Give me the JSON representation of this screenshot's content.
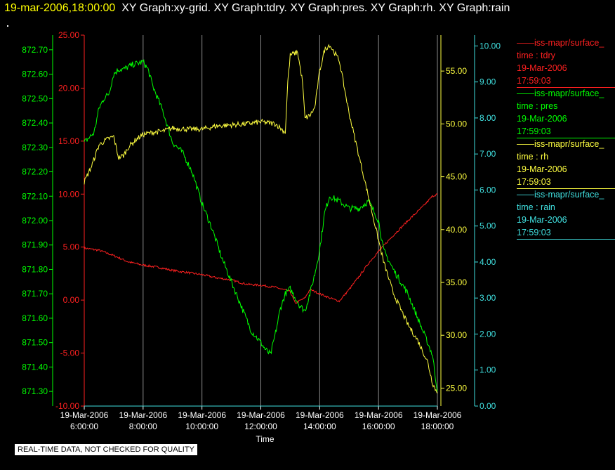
{
  "title": {
    "datetime": "19-mar-2006,18:00:00",
    "graphs": "XY Graph:xy-grid.  XY Graph:tdry.  XY Graph:pres.  XY Graph:rh.  XY Graph:rain"
  },
  "legend": [
    {
      "line": "——iss-mapr/surface_",
      "var": "time : tdry",
      "date": "19-Mar-2006",
      "time": "17:59:03",
      "color": "#ff2020"
    },
    {
      "line": "——iss-mapr/surface_",
      "var": "time : pres",
      "date": "19-Mar-2006",
      "time": "17:59:03",
      "color": "#00ff00"
    },
    {
      "line": "——iss-mapr/surface_",
      "var": "time : rh",
      "date": "19-Mar-2006",
      "time": "17:59:03",
      "color": "#ffff40"
    },
    {
      "line": "——iss-mapr/surface_",
      "var": "time : rain",
      "date": "19-Mar-2006",
      "time": "17:59:03",
      "color": "#40e0e0"
    }
  ],
  "note": "REAL-TIME DATA, NOT CHECKED FOR QUALITY",
  "chart_data": {
    "type": "line",
    "xlabel": "Time",
    "x_ticks": [
      [
        "19-Mar-2006",
        "6:00:00"
      ],
      [
        "19-Mar-2006",
        "8:00:00"
      ],
      [
        "19-Mar-2006",
        "10:00:00"
      ],
      [
        "19-Mar-2006",
        "12:00:00"
      ],
      [
        "19-Mar-2006",
        "14:00:00"
      ],
      [
        "19-Mar-2006",
        "16:00:00"
      ],
      [
        "19-Mar-2006",
        "18:00:00"
      ]
    ],
    "x_range": [
      "19-Mar-2006 6:00:00",
      "19-Mar-2006 18:00:00"
    ],
    "grid": "vertical lines at x ticks",
    "axes": [
      {
        "id": "pres",
        "side": "left-outer",
        "color": "#00ff00",
        "range": [
          871.24,
          872.76
        ],
        "ticks": [
          "871.30",
          "871.40",
          "871.50",
          "871.60",
          "871.70",
          "871.80",
          "871.90",
          "872.00",
          "872.10",
          "872.20",
          "872.30",
          "872.40",
          "872.50",
          "872.60",
          "872.70"
        ]
      },
      {
        "id": "tdry",
        "side": "left-inner",
        "color": "#ff2020",
        "range": [
          -10,
          25
        ],
        "ticks": [
          "-10.00",
          "-5.00",
          "0.00",
          "5.00",
          "10.00",
          "15.00",
          "20.00",
          "25.00"
        ]
      },
      {
        "id": "rh",
        "side": "right-inner",
        "color": "#ffff40",
        "range": [
          23.3,
          58.4
        ],
        "ticks": [
          "25.00",
          "30.00",
          "35.00",
          "40.00",
          "45.00",
          "50.00",
          "55.00"
        ]
      },
      {
        "id": "rain",
        "side": "right-outer",
        "color": "#40e0e0",
        "range": [
          0,
          10.3
        ],
        "ticks": [
          "0.00",
          "1.00",
          "2.00",
          "3.00",
          "4.00",
          "5.00",
          "6.00",
          "7.00",
          "8.00",
          "9.00",
          "10.00"
        ]
      }
    ],
    "series": [
      {
        "name": "time : tdry",
        "axis": "tdry",
        "color": "#ff2020",
        "points": [
          [
            "06:00",
            4.9
          ],
          [
            "06:30",
            4.7
          ],
          [
            "07:00",
            4.2
          ],
          [
            "07:30",
            3.6
          ],
          [
            "08:00",
            3.3
          ],
          [
            "08:30",
            3.1
          ],
          [
            "09:00",
            2.8
          ],
          [
            "09:30",
            2.6
          ],
          [
            "10:00",
            2.4
          ],
          [
            "10:30",
            2.1
          ],
          [
            "11:00",
            1.9
          ],
          [
            "11:30",
            1.5
          ],
          [
            "12:00",
            1.4
          ],
          [
            "12:30",
            1.2
          ],
          [
            "13:00",
            0.8
          ],
          [
            "13:10",
            -0.3
          ],
          [
            "13:30",
            0.2
          ],
          [
            "13:40",
            1.0
          ],
          [
            "14:00",
            0.6
          ],
          [
            "14:20",
            0.2
          ],
          [
            "14:40",
            -0.1
          ],
          [
            "15:00",
            1.0
          ],
          [
            "15:20",
            2.2
          ],
          [
            "15:40",
            3.5
          ],
          [
            "16:00",
            4.6
          ],
          [
            "16:30",
            6.1
          ],
          [
            "17:00",
            7.5
          ],
          [
            "17:30",
            8.8
          ],
          [
            "17:50",
            9.8
          ],
          [
            "18:00",
            10.0
          ]
        ],
        "noise": 0.1
      },
      {
        "name": "time : pres",
        "axis": "pres",
        "color": "#00ff00",
        "points": [
          [
            "06:00",
            872.32
          ],
          [
            "06:10",
            872.34
          ],
          [
            "06:20",
            872.36
          ],
          [
            "06:30",
            872.46
          ],
          [
            "06:40",
            872.5
          ],
          [
            "06:50",
            872.52
          ],
          [
            "07:00",
            872.6
          ],
          [
            "07:10",
            872.62
          ],
          [
            "07:20",
            872.62
          ],
          [
            "07:40",
            872.64
          ],
          [
            "08:00",
            872.65
          ],
          [
            "08:10",
            872.62
          ],
          [
            "08:20",
            872.55
          ],
          [
            "08:40",
            872.45
          ],
          [
            "09:00",
            872.32
          ],
          [
            "09:20",
            872.28
          ],
          [
            "09:40",
            872.2
          ],
          [
            "10:00",
            872.07
          ],
          [
            "10:20",
            871.97
          ],
          [
            "10:40",
            871.85
          ],
          [
            "11:00",
            871.75
          ],
          [
            "11:20",
            871.65
          ],
          [
            "11:40",
            871.55
          ],
          [
            "12:00",
            871.5
          ],
          [
            "12:10",
            871.47
          ],
          [
            "12:20",
            871.45
          ],
          [
            "12:30",
            871.54
          ],
          [
            "12:40",
            871.64
          ],
          [
            "12:50",
            871.7
          ],
          [
            "13:00",
            871.72
          ],
          [
            "13:20",
            871.65
          ],
          [
            "13:30",
            871.63
          ],
          [
            "13:40",
            871.7
          ],
          [
            "13:50",
            871.78
          ],
          [
            "14:00",
            871.88
          ],
          [
            "14:10",
            872.03
          ],
          [
            "14:20",
            872.1
          ],
          [
            "14:40",
            872.08
          ],
          [
            "15:00",
            872.05
          ],
          [
            "15:20",
            872.05
          ],
          [
            "15:40",
            872.08
          ],
          [
            "16:00",
            872.0
          ],
          [
            "16:10",
            871.88
          ],
          [
            "16:30",
            871.8
          ],
          [
            "17:00",
            871.7
          ],
          [
            "17:30",
            871.55
          ],
          [
            "17:50",
            871.45
          ],
          [
            "18:00",
            871.3
          ]
        ],
        "noise": 0.013
      },
      {
        "name": "time : rh",
        "axis": "rh",
        "color": "#ffff40",
        "points": [
          [
            "06:00",
            44.5
          ],
          [
            "06:15",
            46.0
          ],
          [
            "06:30",
            48.0
          ],
          [
            "06:45",
            48.5
          ],
          [
            "07:00",
            48.8
          ],
          [
            "07:10",
            46.8
          ],
          [
            "07:20",
            47.0
          ],
          [
            "07:30",
            47.8
          ],
          [
            "07:45",
            48.5
          ],
          [
            "08:00",
            49.0
          ],
          [
            "08:20",
            49.2
          ],
          [
            "08:40",
            49.3
          ],
          [
            "09:00",
            49.6
          ],
          [
            "09:30",
            49.5
          ],
          [
            "10:00",
            49.5
          ],
          [
            "10:30",
            49.8
          ],
          [
            "11:00",
            49.9
          ],
          [
            "11:30",
            50.0
          ],
          [
            "12:00",
            50.2
          ],
          [
            "12:30",
            50.0
          ],
          [
            "12:50",
            49.2
          ],
          [
            "12:55",
            54.0
          ],
          [
            "13:00",
            56.5
          ],
          [
            "13:15",
            56.8
          ],
          [
            "13:25",
            54.0
          ],
          [
            "13:30",
            50.5
          ],
          [
            "13:40",
            50.8
          ],
          [
            "13:50",
            51.5
          ],
          [
            "14:00",
            55.0
          ],
          [
            "14:10",
            57.0
          ],
          [
            "14:20",
            57.5
          ],
          [
            "14:40",
            56.0
          ],
          [
            "15:00",
            51.0
          ],
          [
            "15:20",
            47.0
          ],
          [
            "15:40",
            43.0
          ],
          [
            "16:00",
            39.0
          ],
          [
            "16:10",
            37.0
          ],
          [
            "16:30",
            34.0
          ],
          [
            "17:00",
            31.0
          ],
          [
            "17:20",
            29.5
          ],
          [
            "17:40",
            27.5
          ],
          [
            "17:50",
            25.5
          ],
          [
            "18:00",
            24.5
          ]
        ],
        "noise": 0.25
      },
      {
        "name": "time : rain",
        "axis": "rain",
        "color": "#40e0e0",
        "points": [
          [
            "06:00",
            0.0
          ],
          [
            "18:00",
            0.0
          ]
        ],
        "noise": 0
      }
    ]
  }
}
